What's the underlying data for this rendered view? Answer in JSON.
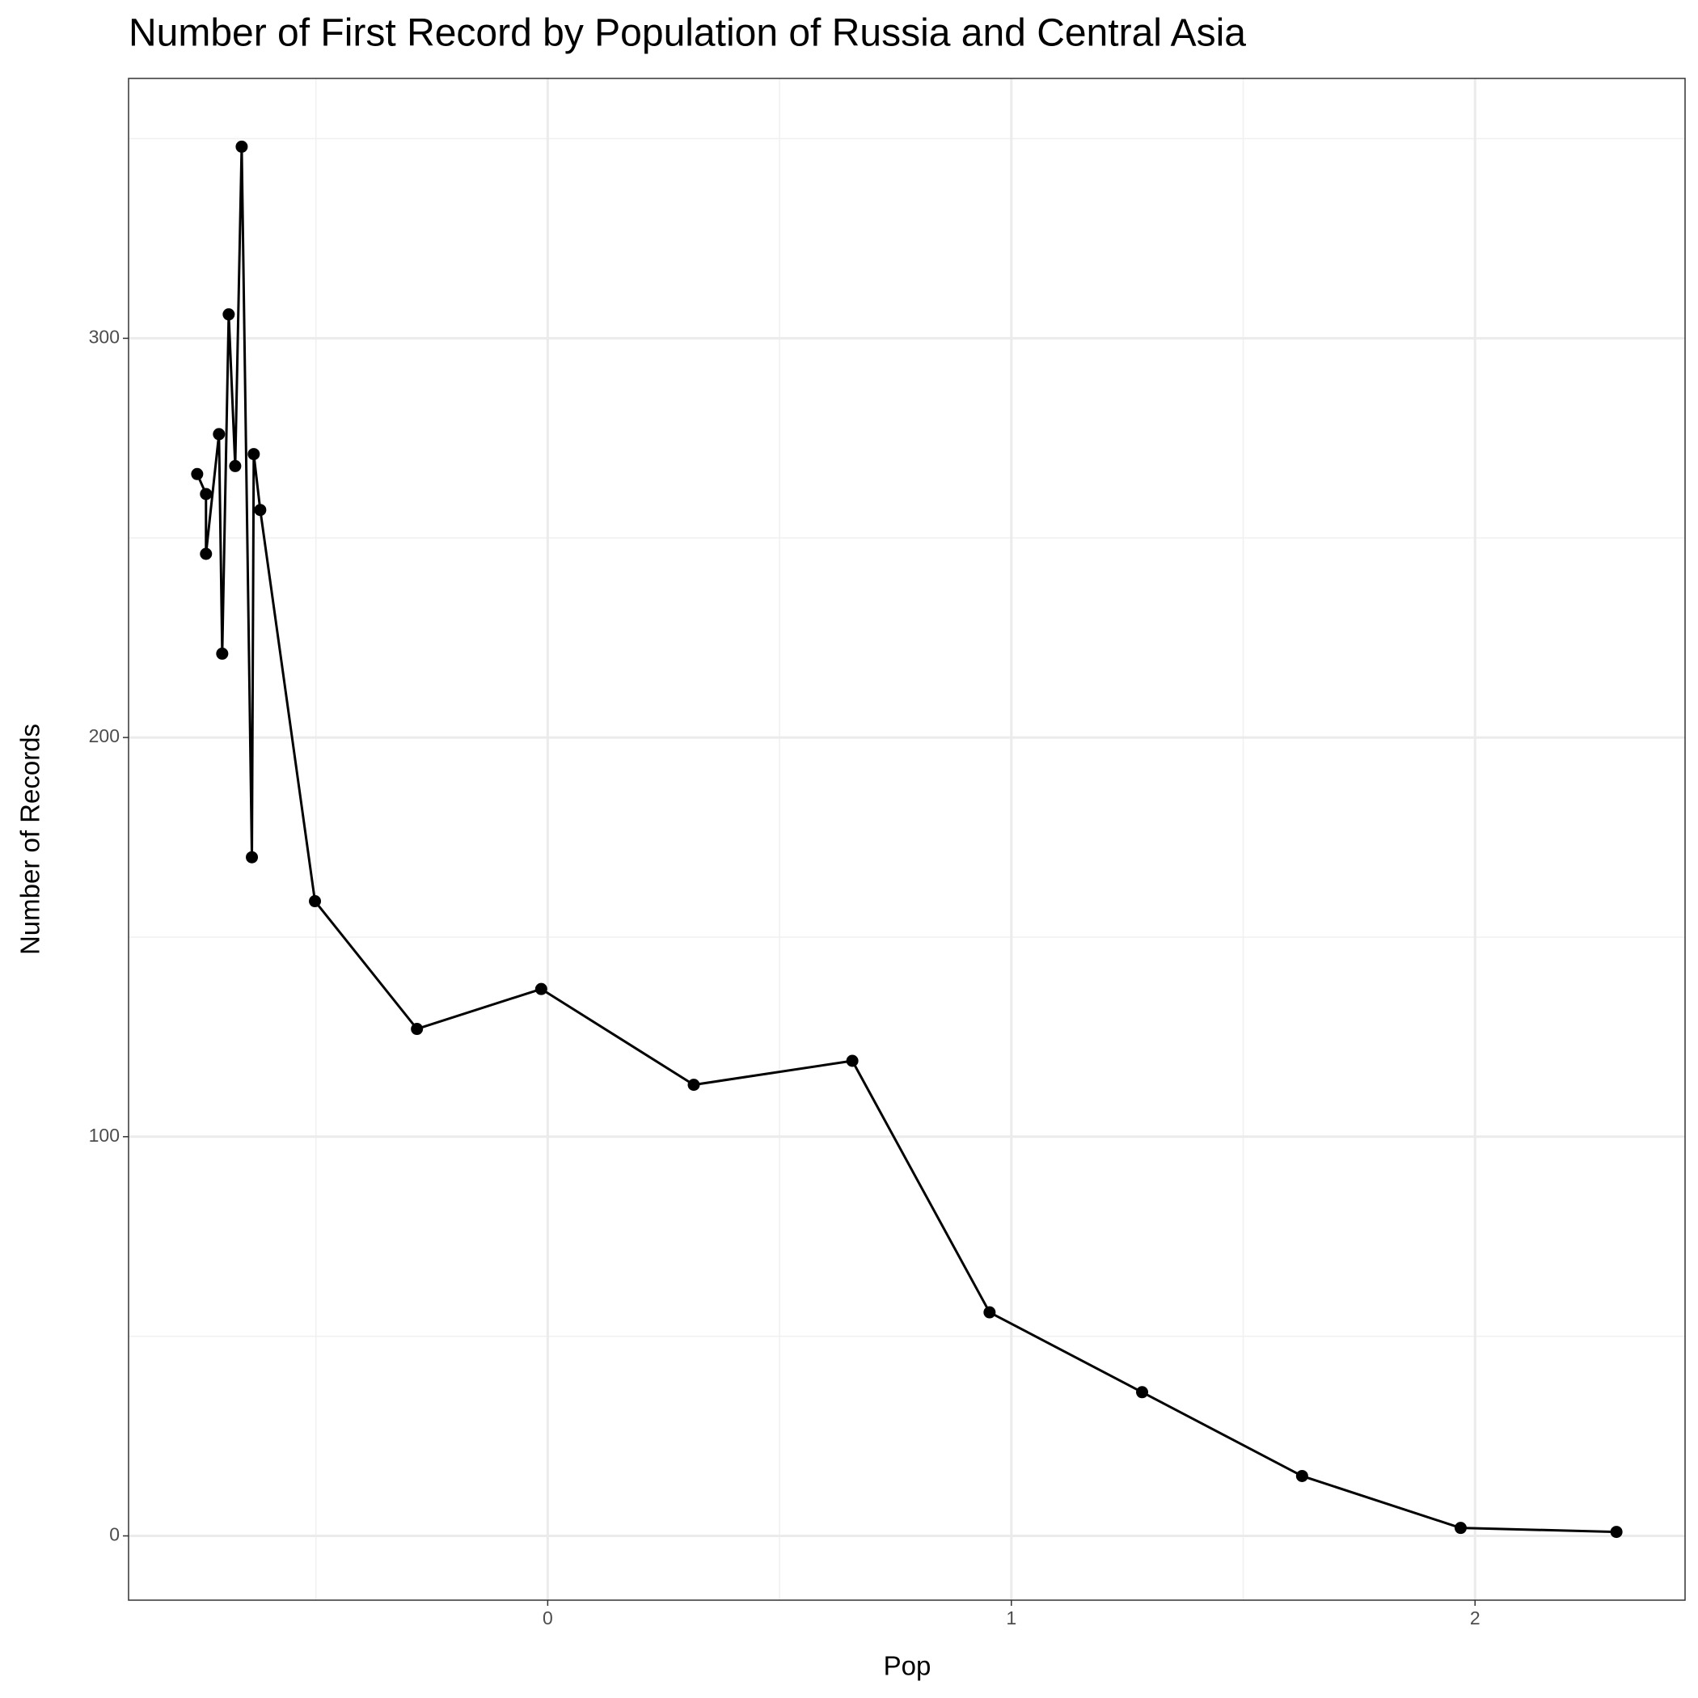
{
  "chart_data": {
    "type": "line",
    "title": "Number of First Record by Population of Russia and Central Asia",
    "x_label": "Pop",
    "y_label": "Number of Records",
    "series": [
      {
        "color": "#000000",
        "x": [
          -0.756,
          -0.737,
          -0.737,
          -0.709,
          -0.702,
          -0.688,
          -0.674,
          -0.66,
          -0.638,
          -0.634,
          -0.62,
          -0.502,
          -0.282,
          -0.014,
          0.315,
          0.657,
          0.953,
          1.282,
          1.627,
          1.969,
          2.305
        ],
        "values": [
          266,
          261,
          246,
          276,
          221,
          306,
          268,
          348,
          170,
          271,
          257,
          159,
          127,
          137,
          113,
          119,
          56,
          36,
          15,
          2,
          1
        ]
      }
    ],
    "xlim": [
      -0.904,
      2.453
    ],
    "ylim": [
      -16.1,
      365.1
    ],
    "xticks": [
      0,
      1,
      2
    ],
    "yticks": [
      0,
      100,
      200,
      300
    ],
    "x_minor_grid": [
      -0.5,
      0.5,
      1.5
    ],
    "y_minor_grid": [
      50,
      150,
      250,
      350
    ],
    "grid": true
  }
}
